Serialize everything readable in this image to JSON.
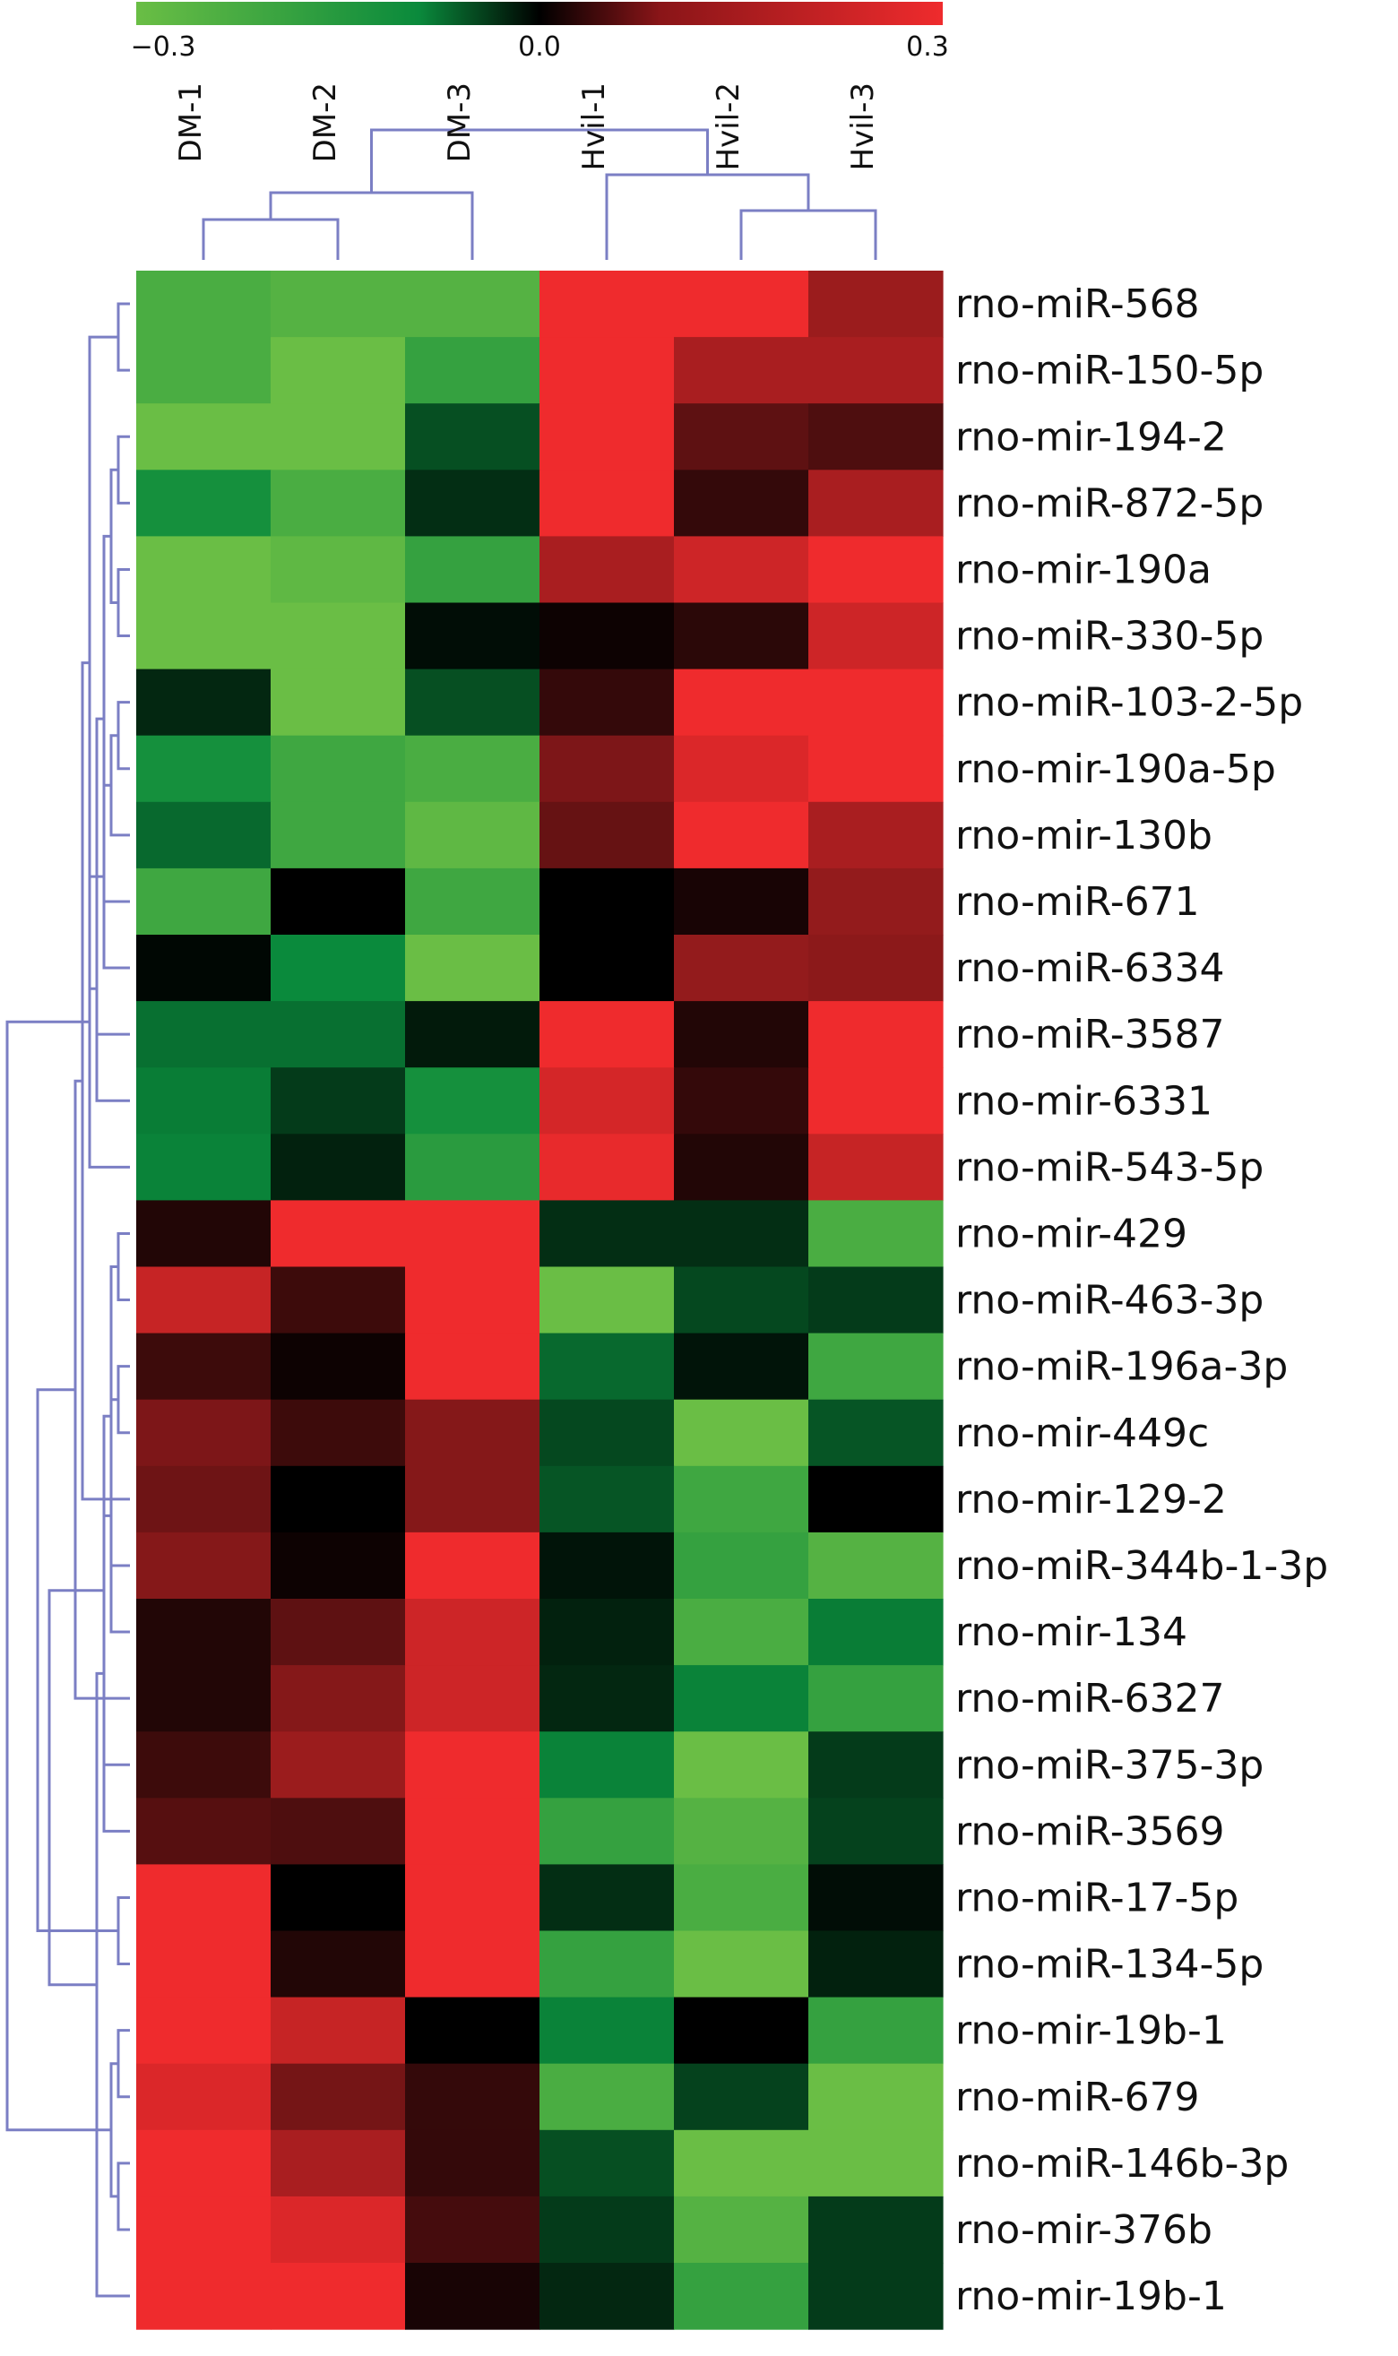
{
  "chart_data": {
    "type": "heatmap",
    "colorbar": {
      "min": -0.3,
      "mid": 0.0,
      "max": 0.3,
      "tick_labels": [
        "−0.3",
        "0.0",
        "0.3"
      ],
      "colors": {
        "low": "#6abe45",
        "mid": "#000000",
        "high": "#ef2b2d"
      }
    },
    "columns": [
      "DM-1",
      "DM-2",
      "DM-3",
      "Hvil-1",
      "Hvil-2",
      "Hvil-3"
    ],
    "rows": [
      "rno-miR-568",
      "rno-miR-150-5p",
      "rno-mir-194-2",
      "rno-miR-872-5p",
      "rno-mir-190a",
      "rno-miR-330-5p",
      "rno-miR-103-2-5p",
      "rno-mir-190a-5p",
      "rno-mir-130b",
      "rno-miR-671",
      "rno-miR-6334",
      "rno-miR-3587",
      "rno-mir-6331",
      "rno-miR-543-5p",
      "rno-mir-429",
      "rno-miR-463-3p",
      "rno-miR-196a-3p",
      "rno-mir-449c",
      "rno-mir-129-2",
      "rno-miR-344b-1-3p",
      "rno-mir-134",
      "rno-miR-6327",
      "rno-miR-375-3p",
      "rno-miR-3569",
      "rno-miR-17-5p",
      "rno-miR-134-5p",
      "rno-mir-19b-1",
      "rno-miR-679",
      "rno-miR-146b-3p",
      "rno-mir-376b",
      "rno-mir-19b-1"
    ],
    "values": [
      [
        -0.27,
        -0.28,
        -0.28,
        0.3,
        0.3,
        0.18
      ],
      [
        -0.27,
        -0.3,
        -0.25,
        0.3,
        0.2,
        0.2
      ],
      [
        -0.3,
        -0.3,
        -0.12,
        0.3,
        0.1,
        0.08
      ],
      [
        -0.22,
        -0.27,
        -0.07,
        0.3,
        0.05,
        0.2
      ],
      [
        -0.3,
        -0.29,
        -0.25,
        0.2,
        0.25,
        0.3
      ],
      [
        -0.3,
        -0.3,
        -0.02,
        0.01,
        0.04,
        0.25
      ],
      [
        -0.06,
        -0.3,
        -0.12,
        0.05,
        0.3,
        0.3
      ],
      [
        -0.22,
        -0.26,
        -0.27,
        0.14,
        0.27,
        0.3
      ],
      [
        -0.16,
        -0.26,
        -0.29,
        0.11,
        0.3,
        0.2
      ],
      [
        -0.26,
        0.0,
        -0.26,
        0.0,
        0.02,
        0.17
      ],
      [
        -0.01,
        -0.21,
        -0.3,
        0.0,
        0.17,
        0.16
      ],
      [
        -0.17,
        -0.17,
        -0.04,
        0.3,
        0.03,
        0.3
      ],
      [
        -0.19,
        -0.09,
        -0.22,
        0.26,
        0.05,
        0.3
      ],
      [
        -0.2,
        -0.05,
        -0.24,
        0.29,
        0.03,
        0.24
      ],
      [
        0.03,
        0.3,
        0.3,
        -0.07,
        -0.07,
        -0.27
      ],
      [
        0.24,
        0.06,
        0.3,
        -0.3,
        -0.11,
        -0.09
      ],
      [
        0.06,
        0.01,
        0.3,
        -0.16,
        -0.03,
        -0.26
      ],
      [
        0.14,
        0.06,
        0.15,
        -0.11,
        -0.3,
        -0.13
      ],
      [
        0.12,
        0.0,
        0.15,
        -0.13,
        -0.26,
        0.0
      ],
      [
        0.15,
        0.01,
        0.3,
        -0.03,
        -0.25,
        -0.28
      ],
      [
        0.03,
        0.1,
        0.25,
        -0.05,
        -0.27,
        -0.19
      ],
      [
        0.03,
        0.15,
        0.25,
        -0.06,
        -0.2,
        -0.25
      ],
      [
        0.06,
        0.18,
        0.3,
        -0.2,
        -0.3,
        -0.09
      ],
      [
        0.09,
        0.08,
        0.3,
        -0.25,
        -0.28,
        -0.1
      ],
      [
        0.3,
        0.0,
        0.3,
        -0.07,
        -0.27,
        -0.02
      ],
      [
        0.3,
        0.03,
        0.3,
        -0.25,
        -0.3,
        -0.05
      ],
      [
        0.3,
        0.24,
        0.0,
        -0.2,
        0.0,
        -0.25
      ],
      [
        0.27,
        0.13,
        0.05,
        -0.27,
        -0.1,
        -0.3
      ],
      [
        0.3,
        0.2,
        0.05,
        -0.12,
        -0.3,
        -0.3
      ],
      [
        0.3,
        0.27,
        0.07,
        -0.09,
        -0.28,
        -0.09
      ],
      [
        0.3,
        0.3,
        0.02,
        -0.06,
        -0.25,
        -0.09
      ]
    ],
    "column_dendrogram": {
      "leaf_order": [
        "DM-1",
        "DM-2",
        "DM-3",
        "Hvil-1",
        "Hvil-2",
        "Hvil-3"
      ],
      "merges": [
        [
          0,
          1
        ],
        [
          4,
          5
        ],
        [
          6,
          2
        ],
        [
          3,
          7
        ],
        [
          8,
          9
        ]
      ]
    },
    "row_dendrogram": {
      "leaf_count": 31,
      "merges": [
        [
          0,
          1
        ],
        [
          2,
          3
        ],
        [
          4,
          5
        ],
        [
          6,
          7
        ],
        [
          32,
          33
        ],
        [
          34,
          8
        ],
        [
          35,
          9
        ],
        [
          36,
          10
        ],
        [
          37,
          11
        ],
        [
          38,
          12
        ],
        [
          39,
          13
        ],
        [
          31,
          40
        ],
        [
          14,
          15
        ],
        [
          16,
          17
        ],
        [
          42,
          18
        ],
        [
          43,
          19
        ],
        [
          44,
          20
        ],
        [
          45,
          21
        ],
        [
          46,
          22
        ],
        [
          47,
          23
        ],
        [
          26,
          27
        ],
        [
          28,
          29
        ],
        [
          50,
          30
        ],
        [
          24,
          25
        ],
        [
          51,
          52
        ],
        [
          49,
          53
        ],
        [
          48,
          54
        ],
        [
          41,
          55
        ]
      ]
    }
  }
}
